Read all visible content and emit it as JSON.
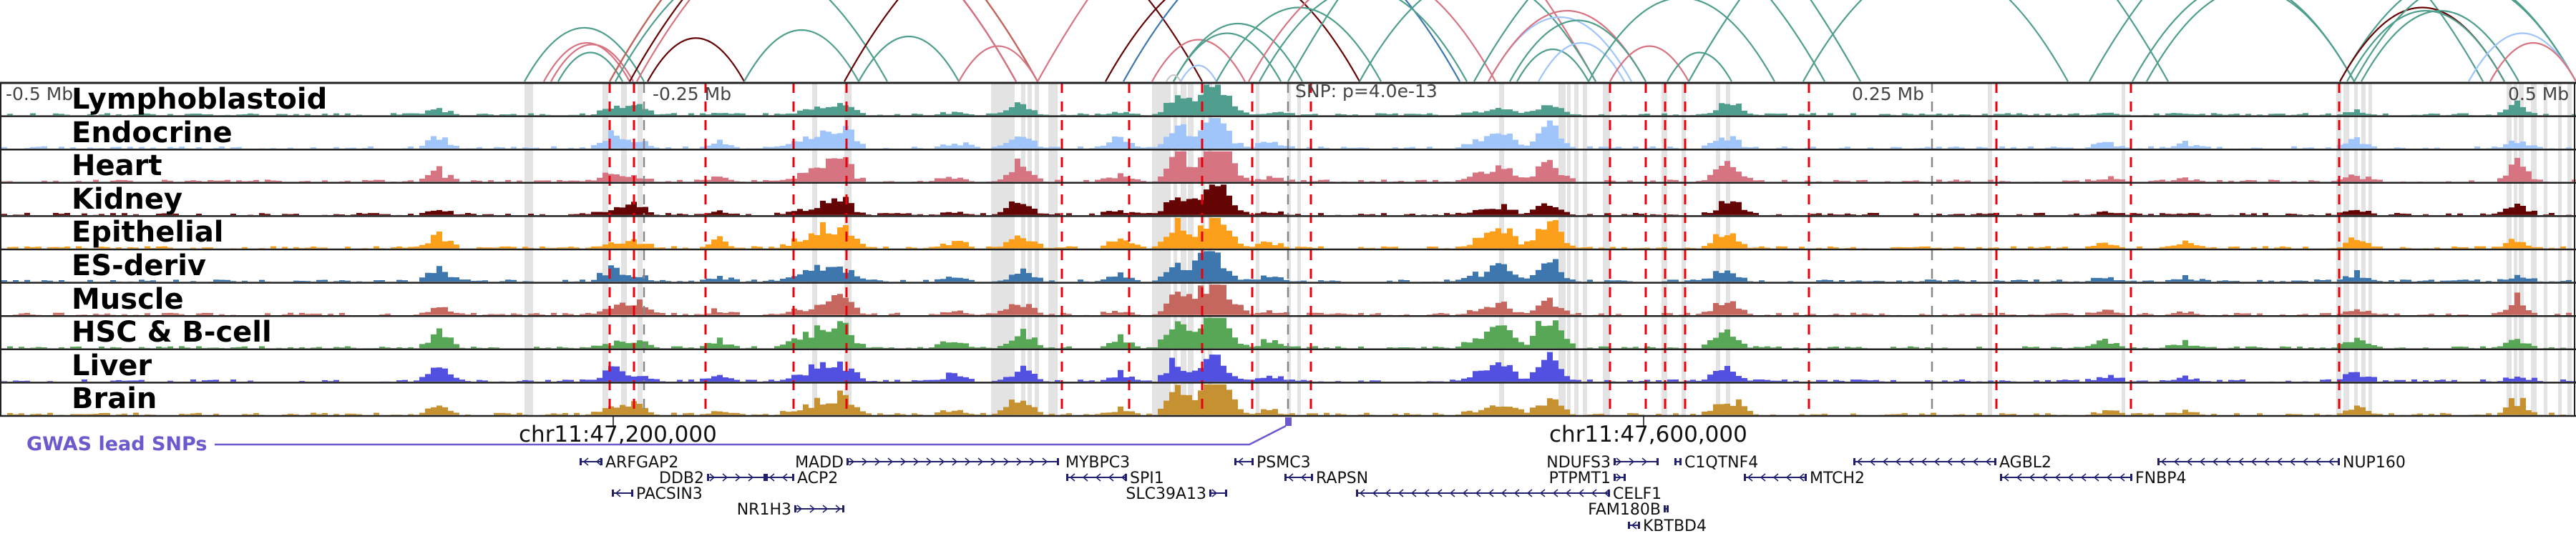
{
  "tracks": [
    {
      "name": "Lymphoblastoid",
      "color": "#4f9e8e"
    },
    {
      "name": "Endocrine",
      "color": "#9fc5fb"
    },
    {
      "name": "Heart",
      "color": "#d77482"
    },
    {
      "name": "Kidney",
      "color": "#650405"
    },
    {
      "name": "Epithelial",
      "color": "#fca01c"
    },
    {
      "name": "ES-deriv",
      "color": "#3e77ae"
    },
    {
      "name": "Muscle",
      "color": "#c6675f"
    },
    {
      "name": "HSC & B-cell",
      "color": "#58a757"
    },
    {
      "name": "Liver",
      "color": "#5150e1"
    },
    {
      "name": "Brain",
      "color": "#c69130"
    }
  ],
  "axis": {
    "ticks": [
      {
        "label": "-0.5 Mb"
      },
      {
        "label": "-0.25 Mb"
      },
      {
        "label": "0.25 Mb"
      },
      {
        "label": "0.5 Mb"
      }
    ],
    "snp_label": "SNP: p=4.0e-13"
  },
  "coordinates": [
    {
      "label": "chr11:47,200,000"
    },
    {
      "label": "chr11:47,600,000"
    }
  ],
  "gwas": {
    "label": "GWAS lead SNPs",
    "color": "#6a5acd"
  },
  "genes": [
    {
      "name": "ARFGAP2",
      "strand": "-"
    },
    {
      "name": "DDB2",
      "strand": "+"
    },
    {
      "name": "ACP2",
      "strand": "-"
    },
    {
      "name": "PACSIN3",
      "strand": "-"
    },
    {
      "name": "NR1H3",
      "strand": "+"
    },
    {
      "name": "MADD",
      "strand": "+"
    },
    {
      "name": "MYBPC3",
      "strand": "-"
    },
    {
      "name": "SPI1",
      "strand": "-"
    },
    {
      "name": "SLC39A13",
      "strand": "+"
    },
    {
      "name": "PSMC3",
      "strand": "-"
    },
    {
      "name": "RAPSN",
      "strand": "-"
    },
    {
      "name": "NDUFS3",
      "strand": "+"
    },
    {
      "name": "PTPMT1",
      "strand": "+"
    },
    {
      "name": "CELF1",
      "strand": "-"
    },
    {
      "name": "FAM180B",
      "strand": "+"
    },
    {
      "name": "KBTBD4",
      "strand": "-"
    },
    {
      "name": "C1QTNF4",
      "strand": "-"
    },
    {
      "name": "MTCH2",
      "strand": "-"
    },
    {
      "name": "AGBL2",
      "strand": "-"
    },
    {
      "name": "FNBP4",
      "strand": "-"
    },
    {
      "name": "NUP160",
      "strand": "-"
    }
  ],
  "colors": {
    "gene": "#1f1f6e",
    "highlight_red": "#e8000b",
    "shade": "#e3e3e3",
    "frame": "#222222",
    "snp_line": "#888888"
  }
}
